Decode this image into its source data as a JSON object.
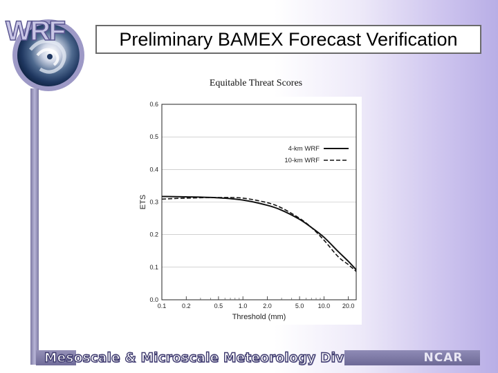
{
  "logo": {
    "text": "WRF"
  },
  "slide": {
    "title": "Preliminary BAMEX Forecast Verification"
  },
  "footer": {
    "division": "Mesoscale & Microscale Meteorology Division",
    "org": "NCAR"
  },
  "chart_data": {
    "type": "line",
    "title": "Equitable Threat Scores",
    "xlabel": "Threshold (mm)",
    "ylabel": "ETS",
    "x_scale": "log",
    "x_ticks": [
      "0.1",
      "0.2",
      "0.5",
      "1.0",
      "2.0",
      "5.0",
      "10.0",
      "20.0"
    ],
    "x_tick_values": [
      0.1,
      0.2,
      0.5,
      1.0,
      2.0,
      5.0,
      10.0,
      20.0
    ],
    "y_ticks": [
      "0.0",
      "0.1",
      "0.2",
      "0.3",
      "0.4",
      "0.5",
      "0.6"
    ],
    "y_tick_values": [
      0,
      0.1,
      0.2,
      0.3,
      0.4,
      0.5,
      0.6
    ],
    "xlim": [
      0.1,
      25
    ],
    "ylim": [
      0,
      0.6
    ],
    "grid": true,
    "legend_position": "top-right",
    "series": [
      {
        "name": "4-km WRF",
        "style": "solid",
        "x": [
          0.1,
          0.2,
          0.5,
          1.0,
          2.0,
          3.0,
          5.0,
          7.0,
          10.0,
          15.0,
          20.0,
          25.0
        ],
        "y": [
          0.317,
          0.316,
          0.313,
          0.306,
          0.29,
          0.275,
          0.247,
          0.222,
          0.192,
          0.148,
          0.118,
          0.092
        ]
      },
      {
        "name": "10-km WRF",
        "style": "dashed",
        "x": [
          0.1,
          0.2,
          0.5,
          1.0,
          2.0,
          3.0,
          5.0,
          7.0,
          10.0,
          15.0,
          20.0,
          25.0
        ],
        "y": [
          0.309,
          0.312,
          0.314,
          0.312,
          0.298,
          0.282,
          0.25,
          0.222,
          0.183,
          0.132,
          0.108,
          0.087
        ]
      }
    ]
  }
}
